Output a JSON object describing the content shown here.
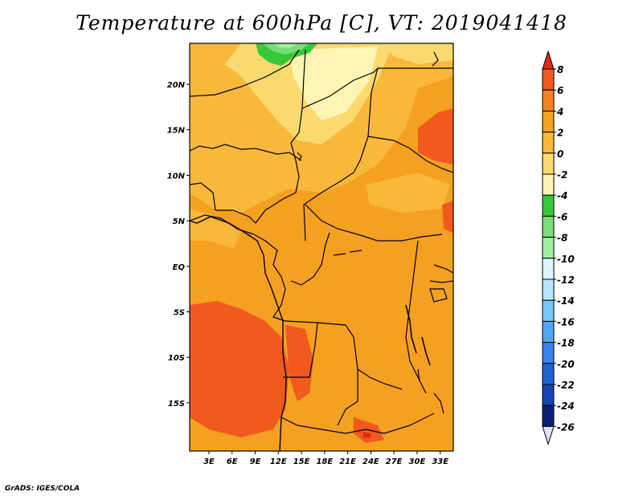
{
  "title": "Temperature at 600hPa [C], VT: 2019041418",
  "credit": "GrADS: IGES/COLA",
  "map": {
    "lat_ticks": [
      "20N",
      "15N",
      "10N",
      "5N",
      "EQ",
      "5S",
      "10S",
      "15S"
    ],
    "lon_ticks": [
      "3E",
      "6E",
      "9E",
      "12E",
      "15E",
      "18E",
      "21E",
      "24E",
      "27E",
      "30E",
      "33E"
    ],
    "lat_values": [
      20,
      15,
      10,
      5,
      0,
      -5,
      -10,
      -15
    ],
    "lon_values": [
      3,
      6,
      9,
      12,
      15,
      18,
      21,
      24,
      27,
      30,
      33
    ],
    "dominant_range": "2 to 4 C over most of central Africa; 4 to 6 C patches over Angola/Namibia coast and southern Sudan; -4 to 0 C over Sahara (north); -8 to -4 C near northern edge at ~10E"
  },
  "colorbar": {
    "labels": [
      "8",
      "6",
      "4",
      "2",
      "0",
      "-2",
      "-4",
      "-6",
      "-8",
      "-10",
      "-12",
      "-14",
      "-16",
      "-18",
      "-20",
      "-22",
      "-24",
      "-26"
    ],
    "colors": [
      "#e42814",
      "#f05a1e",
      "#f5821e",
      "#f5a01e",
      "#f8b83c",
      "#fada6e",
      "#fef5b4",
      "#37c837",
      "#78dc78",
      "#a0f0a0",
      "#dcf6ff",
      "#b4e6ff",
      "#78c8ff",
      "#50a5f5",
      "#3782eb",
      "#1e64d2",
      "#1446b4",
      "#0a1e78",
      "#e0e0ff"
    ]
  }
}
